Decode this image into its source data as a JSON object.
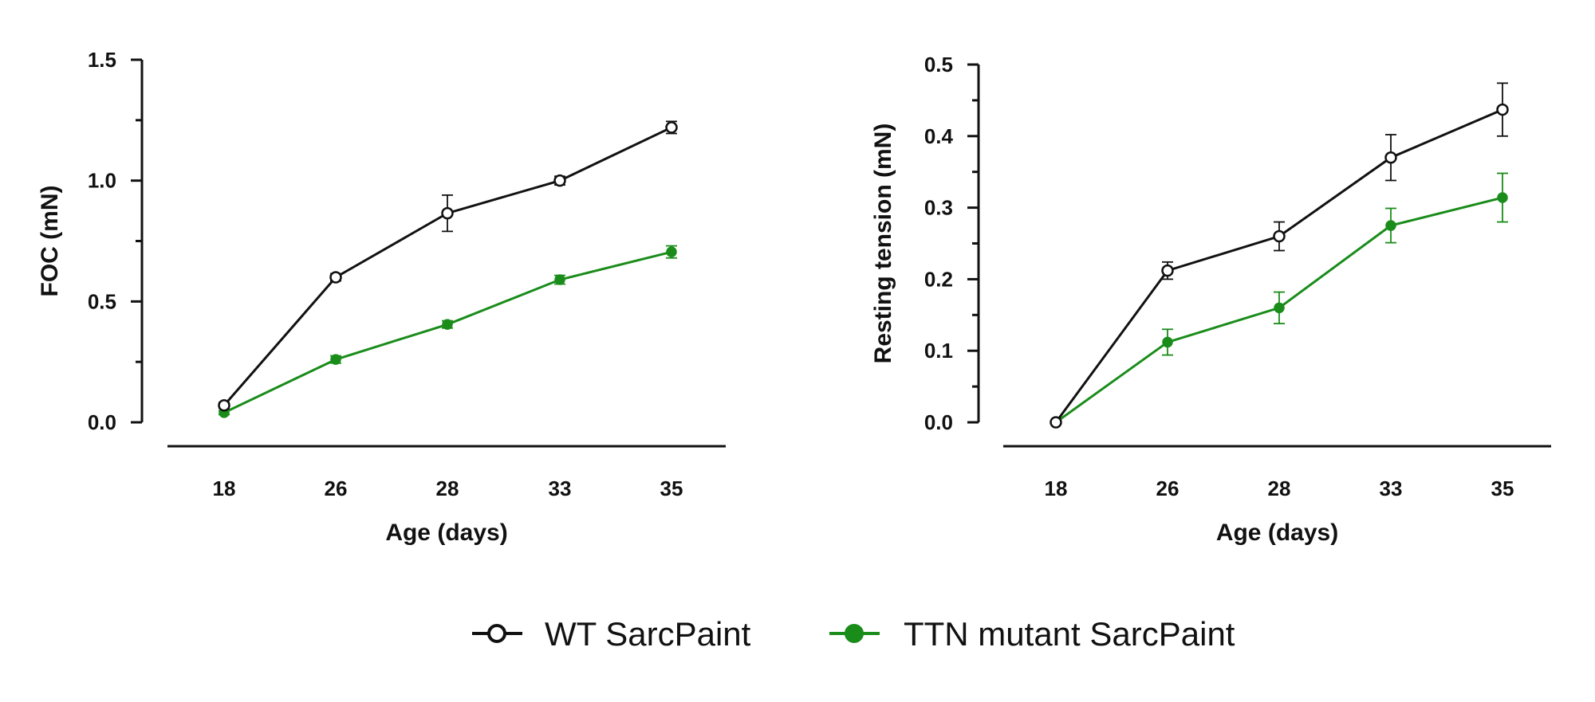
{
  "colors": {
    "wt": "#111111",
    "ttn": "#1a8c1a",
    "axis": "#111111"
  },
  "legend": [
    {
      "label": "WT SarcPaint",
      "marker": "open-circle",
      "color": "#111111"
    },
    {
      "label": "TTN mutant SarcPaint",
      "marker": "filled-circle",
      "color": "#1a8c1a"
    }
  ],
  "chart_data": [
    {
      "type": "line",
      "xlabel": "Age (days)",
      "ylabel": "FOC (mN)",
      "categories": [
        "18",
        "26",
        "28",
        "33",
        "35"
      ],
      "ylim": [
        0,
        1.5
      ],
      "yticks": [
        "0.0",
        "0.5",
        "1.0",
        "1.5"
      ],
      "grid": false,
      "series": [
        {
          "name": "WT SarcPaint",
          "values": [
            0.07,
            0.6,
            0.865,
            1.0,
            1.22
          ],
          "errors": [
            0.012,
            0.015,
            0.075,
            0.018,
            0.025
          ]
        },
        {
          "name": "TTN mutant SarcPaint",
          "values": [
            0.04,
            0.26,
            0.405,
            0.59,
            0.705
          ],
          "errors": [
            0.008,
            0.015,
            0.015,
            0.018,
            0.025
          ]
        }
      ]
    },
    {
      "type": "line",
      "xlabel": "Age (days)",
      "ylabel": "Resting tension (mN)",
      "categories": [
        "18",
        "26",
        "28",
        "33",
        "35"
      ],
      "ylim": [
        0,
        0.5
      ],
      "yticks": [
        "0.0",
        "0.1",
        "0.2",
        "0.3",
        "0.4",
        "0.5"
      ],
      "grid": false,
      "series": [
        {
          "name": "WT SarcPaint",
          "values": [
            0.0,
            0.212,
            0.26,
            0.37,
            0.437
          ],
          "errors": [
            0.002,
            0.012,
            0.02,
            0.032,
            0.037
          ]
        },
        {
          "name": "TTN mutant SarcPaint",
          "values": [
            0.0,
            0.112,
            0.16,
            0.275,
            0.314
          ],
          "errors": [
            0.002,
            0.018,
            0.022,
            0.024,
            0.034
          ]
        }
      ]
    }
  ]
}
